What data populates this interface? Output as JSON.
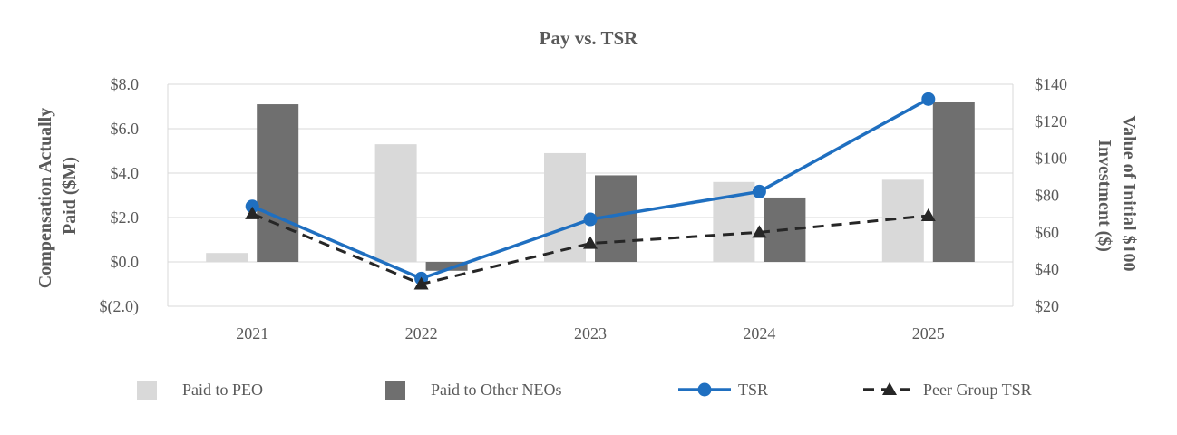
{
  "chart_data": {
    "type": "bar",
    "title": "Pay vs. TSR",
    "categories": [
      "2021",
      "2022",
      "2023",
      "2024",
      "2025"
    ],
    "y_left": {
      "label_lines": [
        "Compensation Actually",
        "Paid ($M)"
      ],
      "ticks": [
        "$(2.0)",
        "$0.0",
        "$2.0",
        "$4.0",
        "$6.0",
        "$8.0"
      ],
      "tick_values": [
        -2,
        0,
        2,
        4,
        6,
        8
      ],
      "ylim": [
        -2,
        8
      ]
    },
    "y_right": {
      "label_lines": [
        "Value of Initial $100",
        "Investment ($)"
      ],
      "ticks": [
        "$20",
        "$40",
        "$60",
        "$80",
        "$100",
        "$120",
        "$140"
      ],
      "tick_values": [
        20,
        40,
        60,
        80,
        100,
        120,
        140
      ],
      "ylim": [
        20,
        140
      ]
    },
    "series": [
      {
        "name": "Paid to PEO",
        "kind": "bar",
        "axis": "left",
        "color": "#d9d9d9",
        "values": [
          0.4,
          5.3,
          4.9,
          3.6,
          3.7
        ]
      },
      {
        "name": "Paid to Other NEOs",
        "kind": "bar",
        "axis": "left",
        "color": "#6f6f6f",
        "values": [
          7.1,
          -0.4,
          3.9,
          2.9,
          7.2
        ]
      },
      {
        "name": "TSR",
        "kind": "line",
        "axis": "right",
        "color": "#1f6fc0",
        "marker": "circle",
        "dash": "solid",
        "values": [
          74,
          35,
          67,
          82,
          132
        ]
      },
      {
        "name": "Peer Group TSR",
        "kind": "line",
        "axis": "right",
        "color": "#262626",
        "marker": "triangle",
        "dash": "dashed",
        "values": [
          70,
          32,
          54,
          60,
          69
        ]
      }
    ],
    "legend": {
      "position": "bottom"
    },
    "grid": true
  }
}
